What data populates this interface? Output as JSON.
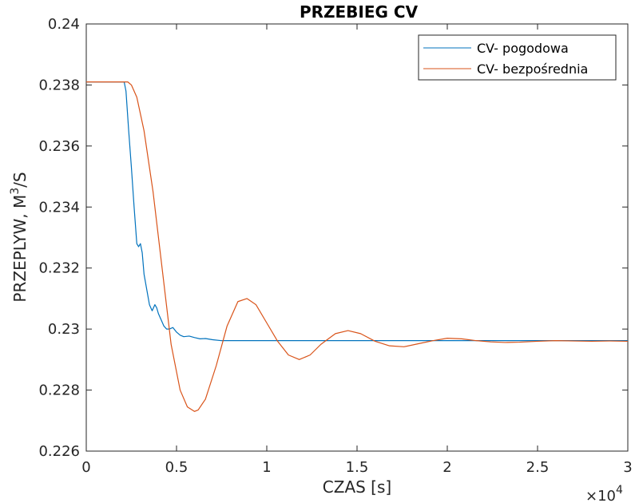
{
  "chart_data": {
    "type": "line",
    "title": "PRZEBIEG CV",
    "xlabel": "CZAS [s]",
    "ylabel_main": "PRZEPLYW, M",
    "ylabel_sup": "3",
    "ylabel_tail": "/S",
    "x_exponent_base": "×10",
    "x_exponent_power": "4",
    "xlim": [
      0,
      30000
    ],
    "ylim": [
      0.226,
      0.24
    ],
    "xticks": [
      0,
      5000,
      10000,
      15000,
      20000,
      25000,
      30000
    ],
    "xtick_labels": [
      "0",
      "0.5",
      "1",
      "1.5",
      "2",
      "2.5",
      "3"
    ],
    "yticks": [
      0.226,
      0.228,
      0.23,
      0.232,
      0.234,
      0.236,
      0.238,
      0.24
    ],
    "ytick_labels": [
      "0.226",
      "0.228",
      "0.23",
      "0.232",
      "0.234",
      "0.236",
      "0.238",
      "0.24"
    ],
    "grid": false,
    "legend_position": "top-right",
    "series": [
      {
        "name": "CV- pogodowa",
        "color": "#0072BD",
        "x": [
          0,
          2000,
          2100,
          2200,
          2350,
          2500,
          2650,
          2800,
          2900,
          3000,
          3100,
          3200,
          3350,
          3500,
          3650,
          3800,
          3900,
          4000,
          4150,
          4300,
          4450,
          4600,
          4800,
          5000,
          5200,
          5400,
          5700,
          6000,
          6300,
          6600,
          7000,
          7500,
          8000,
          10000,
          15000,
          20000,
          25000,
          30000
        ],
        "y": [
          0.2381,
          0.2381,
          0.2381,
          0.2378,
          0.2365,
          0.2353,
          0.234,
          0.2328,
          0.2327,
          0.2328,
          0.2325,
          0.2318,
          0.2313,
          0.2308,
          0.2306,
          0.2308,
          0.2307,
          0.2305,
          0.2303,
          0.2301,
          0.23,
          0.23,
          0.23005,
          0.2299,
          0.2298,
          0.22975,
          0.22977,
          0.22972,
          0.22968,
          0.22969,
          0.22965,
          0.22962,
          0.22962,
          0.22962,
          0.22962,
          0.22962,
          0.22962,
          0.22962
        ]
      },
      {
        "name": "CV- bezpośrednia",
        "color": "#D95319",
        "x": [
          0,
          2300,
          2500,
          2800,
          3200,
          3700,
          4200,
          4700,
          5200,
          5600,
          6000,
          6200,
          6600,
          7200,
          7800,
          8400,
          8900,
          9400,
          10000,
          10600,
          11200,
          11800,
          12400,
          13000,
          13800,
          14500,
          15200,
          16000,
          16800,
          17600,
          18400,
          19200,
          20000,
          20800,
          21600,
          22400,
          23200,
          24000,
          25000,
          26000,
          27000,
          28000,
          29000,
          30000
        ],
        "y": [
          0.2381,
          0.2381,
          0.238,
          0.2376,
          0.2365,
          0.2345,
          0.232,
          0.2295,
          0.228,
          0.22745,
          0.2273,
          0.22735,
          0.2277,
          0.2288,
          0.2301,
          0.2309,
          0.231,
          0.2308,
          0.2302,
          0.2296,
          0.22915,
          0.229,
          0.22915,
          0.2295,
          0.22985,
          0.22995,
          0.22985,
          0.2296,
          0.22945,
          0.22942,
          0.22952,
          0.22962,
          0.2297,
          0.22968,
          0.22962,
          0.22958,
          0.22956,
          0.22957,
          0.2296,
          0.22962,
          0.22961,
          0.2296,
          0.22961,
          0.2296
        ]
      }
    ]
  }
}
